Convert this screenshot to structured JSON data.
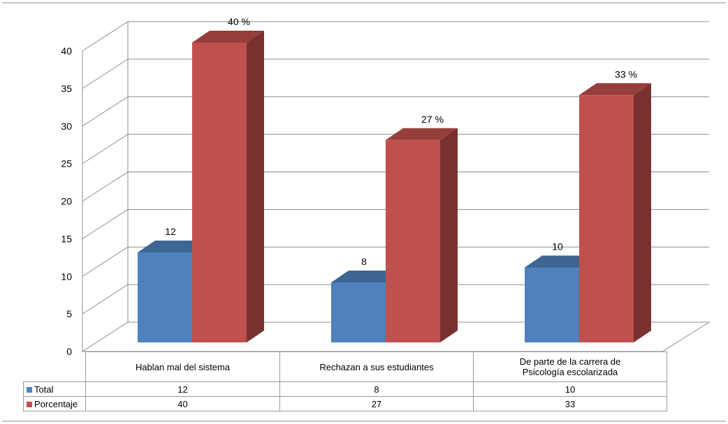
{
  "chart_data": {
    "type": "bar",
    "categories": [
      "Hablan mal del sistema",
      "Rechazan a sus estudiantes",
      "De parte de la carrera de Psicología escolarizada"
    ],
    "series": [
      {
        "name": "Total",
        "values": [
          12,
          8,
          10
        ],
        "color": "#4f81bd",
        "labels": [
          "12",
          "8",
          "10"
        ]
      },
      {
        "name": "Porcentaje",
        "values": [
          40,
          27,
          33
        ],
        "color": "#c0504d",
        "labels": [
          "40 %",
          "27 %",
          "33 %"
        ]
      }
    ],
    "ylim": [
      0,
      40
    ],
    "yticks": [
      "0",
      "5",
      "10",
      "15",
      "20",
      "25",
      "30",
      "35",
      "40"
    ],
    "grid": true,
    "three_d": true,
    "legend": "data-table",
    "table": {
      "rows": [
        {
          "key": "Total",
          "cells": [
            "12",
            "8",
            "10"
          ]
        },
        {
          "key": "Porcentaje",
          "cells": [
            "40",
            "27",
            "33"
          ]
        }
      ]
    }
  }
}
